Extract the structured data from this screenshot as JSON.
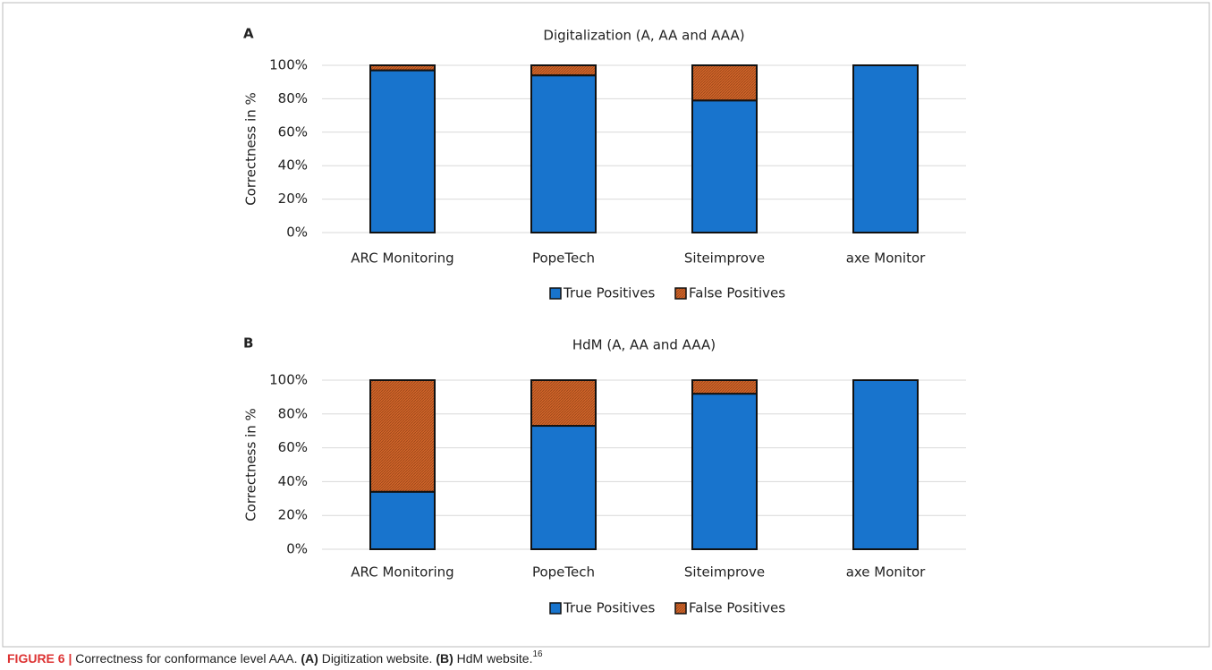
{
  "chart_data": [
    {
      "type": "stacked_bar",
      "panel": "A",
      "title": "Digitalization (A, AA and AAA)",
      "ylabel": "Correctness in %",
      "categories": [
        "ARC Monitoring",
        "PopeTech",
        "Siteimprove",
        "axe Monitor"
      ],
      "series": [
        {
          "name": "True Positives",
          "color": "#1874cd",
          "values": [
            97,
            94,
            79,
            100
          ]
        },
        {
          "name": "False Positives",
          "color": "#d0652a",
          "values": [
            3,
            6,
            21,
            0
          ]
        }
      ],
      "ylim": [
        0,
        100
      ],
      "yticks": [
        {
          "value": 0,
          "label": "0%"
        },
        {
          "value": 20,
          "label": "20%"
        },
        {
          "value": 40,
          "label": "40%"
        },
        {
          "value": 60,
          "label": "60%"
        },
        {
          "value": 80,
          "label": "80%"
        },
        {
          "value": 100,
          "label": "100%"
        }
      ],
      "grid": true,
      "legend": "bottom"
    },
    {
      "type": "stacked_bar",
      "panel": "B",
      "title": "HdM (A, AA and AAA)",
      "ylabel": "Correctness in %",
      "categories": [
        "ARC Monitoring",
        "PopeTech",
        "Siteimprove",
        "axe Monitor"
      ],
      "series": [
        {
          "name": "True Positives",
          "color": "#1874cd",
          "values": [
            34,
            73,
            92,
            100
          ]
        },
        {
          "name": "False Positives",
          "color": "#d0652a",
          "values": [
            66,
            27,
            8,
            0
          ]
        }
      ],
      "ylim": [
        0,
        100
      ],
      "yticks": [
        {
          "value": 0,
          "label": "0%"
        },
        {
          "value": 20,
          "label": "20%"
        },
        {
          "value": 40,
          "label": "40%"
        },
        {
          "value": 60,
          "label": "60%"
        },
        {
          "value": 80,
          "label": "80%"
        },
        {
          "value": 100,
          "label": "100%"
        }
      ],
      "grid": true,
      "legend": "bottom"
    }
  ],
  "caption": {
    "label": "FIGURE 6 |",
    "text": " Correctness for conformance level AAA. ",
    "a_label": "(A)",
    "a_text": " Digitization website. ",
    "b_label": "(B)",
    "b_text": " HdM website.",
    "footnote": "16"
  }
}
